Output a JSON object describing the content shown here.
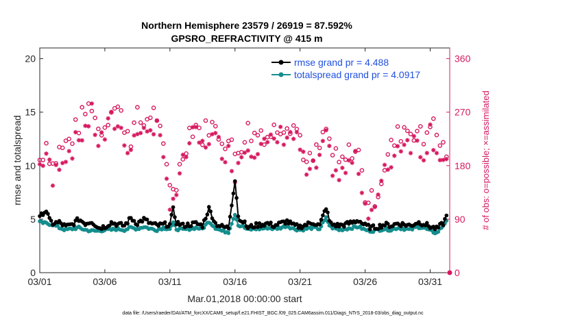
{
  "chart_data": {
    "type": "line",
    "title": "Northern Hemisphere 23579 / 26919 = 87.592%",
    "subtitle": "GPSRO_REFRACTIVITY @ 415 m",
    "xlabel": "Mar.01,2018 00:00:00 start",
    "ylabel": "rmse and totalspread",
    "ylabel_right": "# of obs: o=possible; ×=assimilated",
    "footer": "data file: /Users/raeder/DAI/ATM_forcXX/CAM6_setup/f.e21.FHIST_BGC.f09_025.CAM6assim.011/Diags_NTrS_2018-03/obs_diag_output.nc",
    "xlim": [
      0,
      31.5
    ],
    "ylim": [
      0,
      21
    ],
    "ylim_right": [
      0,
      378
    ],
    "xticks": [
      0,
      5,
      10,
      15,
      20,
      25,
      30
    ],
    "xtick_labels": [
      "03/01",
      "03/06",
      "03/11",
      "03/16",
      "03/21",
      "03/26",
      "03/31"
    ],
    "yticks": [
      0,
      5,
      10,
      15,
      20
    ],
    "yticks_right": [
      0,
      90,
      180,
      270,
      360
    ],
    "legend": [
      {
        "label": "rmse grand pr = 4.488",
        "color": "#000000"
      },
      {
        "label": "totalspread grand pr = 4.0917",
        "color": "#138d8d"
      }
    ],
    "legend_position": "top-right",
    "series": [
      {
        "name": "rmse",
        "color": "#000000",
        "anchors": [
          [
            0,
            5.1
          ],
          [
            0.25,
            5.6
          ],
          [
            0.5,
            5.8
          ],
          [
            0.75,
            4.9
          ],
          [
            1.0,
            4.6
          ],
          [
            1.5,
            4.7
          ],
          [
            2.0,
            4.3
          ],
          [
            2.5,
            4.5
          ],
          [
            3.0,
            5.0
          ],
          [
            3.5,
            4.6
          ],
          [
            4.0,
            4.8
          ],
          [
            4.5,
            4.2
          ],
          [
            5.0,
            4.3
          ],
          [
            5.5,
            4.7
          ],
          [
            6.0,
            4.5
          ],
          [
            6.5,
            4.4
          ],
          [
            7.0,
            5.1
          ],
          [
            7.5,
            4.6
          ],
          [
            8.0,
            5.0
          ],
          [
            8.5,
            4.6
          ],
          [
            9.0,
            4.4
          ],
          [
            9.5,
            4.5
          ],
          [
            10.0,
            4.5
          ],
          [
            10.25,
            5.9
          ],
          [
            10.5,
            4.7
          ],
          [
            11.0,
            4.4
          ],
          [
            11.5,
            4.5
          ],
          [
            12.0,
            4.6
          ],
          [
            12.5,
            4.4
          ],
          [
            13.0,
            6.0
          ],
          [
            13.5,
            4.6
          ],
          [
            14.0,
            4.3
          ],
          [
            14.5,
            4.2
          ],
          [
            15.0,
            8.7
          ],
          [
            15.3,
            4.7
          ],
          [
            15.5,
            5.0
          ],
          [
            16.0,
            4.2
          ],
          [
            16.5,
            4.4
          ],
          [
            17.0,
            4.5
          ],
          [
            17.5,
            4.6
          ],
          [
            18.0,
            4.4
          ],
          [
            18.5,
            4.6
          ],
          [
            19.0,
            4.8
          ],
          [
            19.5,
            4.4
          ],
          [
            20.0,
            4.3
          ],
          [
            20.5,
            4.5
          ],
          [
            21.0,
            4.7
          ],
          [
            21.5,
            4.4
          ],
          [
            22.0,
            6.1
          ],
          [
            22.3,
            4.6
          ],
          [
            22.5,
            4.5
          ],
          [
            23.0,
            4.4
          ],
          [
            23.5,
            4.5
          ],
          [
            24.0,
            4.7
          ],
          [
            24.5,
            4.9
          ],
          [
            25.0,
            4.4
          ],
          [
            25.5,
            4.2
          ],
          [
            26.0,
            4.3
          ],
          [
            26.5,
            4.5
          ],
          [
            27.0,
            4.4
          ],
          [
            27.5,
            4.6
          ],
          [
            28.0,
            4.5
          ],
          [
            28.5,
            4.4
          ],
          [
            29.0,
            4.7
          ],
          [
            29.5,
            4.6
          ],
          [
            30.0,
            4.3
          ],
          [
            30.5,
            4.1
          ],
          [
            31.0,
            4.6
          ],
          [
            31.3,
            5.4
          ]
        ]
      },
      {
        "name": "totalspread",
        "color": "#138d8d",
        "anchors": [
          [
            0,
            4.7
          ],
          [
            0.5,
            4.6
          ],
          [
            1.0,
            4.5
          ],
          [
            1.5,
            4.2
          ],
          [
            2.0,
            4.0
          ],
          [
            2.5,
            4.1
          ],
          [
            3.0,
            4.2
          ],
          [
            3.5,
            4.0
          ],
          [
            4.0,
            3.9
          ],
          [
            4.5,
            3.9
          ],
          [
            5.0,
            4.0
          ],
          [
            5.5,
            4.0
          ],
          [
            6.0,
            4.1
          ],
          [
            6.5,
            4.0
          ],
          [
            7.0,
            4.2
          ],
          [
            7.5,
            4.1
          ],
          [
            8.0,
            4.3
          ],
          [
            8.5,
            4.1
          ],
          [
            9.0,
            4.0
          ],
          [
            9.5,
            4.2
          ],
          [
            10.0,
            4.1
          ],
          [
            10.25,
            4.6
          ],
          [
            10.5,
            4.1
          ],
          [
            11.0,
            4.0
          ],
          [
            11.5,
            4.1
          ],
          [
            12.0,
            4.2
          ],
          [
            12.5,
            4.1
          ],
          [
            13.0,
            4.8
          ],
          [
            13.5,
            4.2
          ],
          [
            14.0,
            3.9
          ],
          [
            14.5,
            3.8
          ],
          [
            15.0,
            5.5
          ],
          [
            15.3,
            4.3
          ],
          [
            15.5,
            4.4
          ],
          [
            16.0,
            4.0
          ],
          [
            16.5,
            4.1
          ],
          [
            17.0,
            4.1
          ],
          [
            17.5,
            4.2
          ],
          [
            18.0,
            4.1
          ],
          [
            18.5,
            4.2
          ],
          [
            19.0,
            4.4
          ],
          [
            19.5,
            4.1
          ],
          [
            20.0,
            4.0
          ],
          [
            20.5,
            4.1
          ],
          [
            21.0,
            4.2
          ],
          [
            21.5,
            4.1
          ],
          [
            22.0,
            5.1
          ],
          [
            22.3,
            4.3
          ],
          [
            22.5,
            4.2
          ],
          [
            23.0,
            4.0
          ],
          [
            23.5,
            4.1
          ],
          [
            24.0,
            4.2
          ],
          [
            24.5,
            4.3
          ],
          [
            25.0,
            4.0
          ],
          [
            25.5,
            3.9
          ],
          [
            26.0,
            4.0
          ],
          [
            26.5,
            4.1
          ],
          [
            27.0,
            4.0
          ],
          [
            27.5,
            4.2
          ],
          [
            28.0,
            4.1
          ],
          [
            28.5,
            4.0
          ],
          [
            29.0,
            4.3
          ],
          [
            29.5,
            4.2
          ],
          [
            30.0,
            3.9
          ],
          [
            30.5,
            3.7
          ],
          [
            31.0,
            4.4
          ],
          [
            31.3,
            5.0
          ]
        ]
      },
      {
        "name": "obs possible",
        "color": "#d6185f",
        "axis": "right",
        "anchors": [
          [
            0,
            190
          ],
          [
            0.5,
            220
          ],
          [
            1.0,
            180
          ],
          [
            1.5,
            205
          ],
          [
            2.0,
            215
          ],
          [
            2.5,
            230
          ],
          [
            3.0,
            250
          ],
          [
            3.5,
            270
          ],
          [
            4.0,
            285
          ],
          [
            4.5,
            240
          ],
          [
            5.0,
            250
          ],
          [
            5.5,
            280
          ],
          [
            6.0,
            275
          ],
          [
            6.5,
            250
          ],
          [
            7.0,
            230
          ],
          [
            7.5,
            260
          ],
          [
            8.0,
            250
          ],
          [
            8.5,
            270
          ],
          [
            9.0,
            265
          ],
          [
            9.5,
            200
          ],
          [
            10.0,
            145
          ],
          [
            10.5,
            150
          ],
          [
            11.0,
            200
          ],
          [
            11.5,
            240
          ],
          [
            12.0,
            250
          ],
          [
            12.5,
            230
          ],
          [
            13.0,
            250
          ],
          [
            13.5,
            240
          ],
          [
            14.0,
            230
          ],
          [
            14.5,
            220
          ],
          [
            15.0,
            200
          ],
          [
            15.5,
            220
          ],
          [
            16.0,
            240
          ],
          [
            16.5,
            230
          ],
          [
            17.0,
            240
          ],
          [
            17.5,
            230
          ],
          [
            18.0,
            240
          ],
          [
            18.5,
            250
          ],
          [
            19.0,
            255
          ],
          [
            19.5,
            250
          ],
          [
            20.0,
            230
          ],
          [
            20.5,
            180
          ],
          [
            21.0,
            190
          ],
          [
            21.5,
            210
          ],
          [
            22.0,
            240
          ],
          [
            22.5,
            200
          ],
          [
            23.0,
            180
          ],
          [
            23.5,
            190
          ],
          [
            24.0,
            210
          ],
          [
            24.5,
            200
          ],
          [
            25.0,
            130
          ],
          [
            25.5,
            120
          ],
          [
            26.0,
            140
          ],
          [
            26.5,
            180
          ],
          [
            27.0,
            210
          ],
          [
            27.5,
            230
          ],
          [
            28.0,
            245
          ],
          [
            28.5,
            240
          ],
          [
            29.0,
            240
          ],
          [
            29.5,
            220
          ],
          [
            30.0,
            260
          ],
          [
            30.5,
            230
          ],
          [
            31.0,
            210
          ],
          [
            31.3,
            205
          ]
        ]
      },
      {
        "name": "obs assimilated",
        "color": "#d6185f",
        "axis": "right",
        "anchors": [
          [
            0,
            180
          ],
          [
            0.5,
            200
          ],
          [
            1.0,
            150
          ],
          [
            1.5,
            190
          ],
          [
            2.0,
            200
          ],
          [
            2.5,
            210
          ],
          [
            3.0,
            225
          ],
          [
            3.5,
            245
          ],
          [
            4.0,
            265
          ],
          [
            4.5,
            220
          ],
          [
            5.0,
            230
          ],
          [
            5.5,
            255
          ],
          [
            6.0,
            250
          ],
          [
            6.5,
            225
          ],
          [
            7.0,
            210
          ],
          [
            7.5,
            240
          ],
          [
            8.0,
            230
          ],
          [
            8.5,
            250
          ],
          [
            9.0,
            245
          ],
          [
            9.5,
            180
          ],
          [
            10.0,
            125
          ],
          [
            10.5,
            135
          ],
          [
            11.0,
            180
          ],
          [
            11.5,
            220
          ],
          [
            12.0,
            230
          ],
          [
            12.5,
            210
          ],
          [
            13.0,
            230
          ],
          [
            13.5,
            220
          ],
          [
            14.0,
            210
          ],
          [
            14.5,
            200
          ],
          [
            15.0,
            170
          ],
          [
            15.5,
            200
          ],
          [
            16.0,
            220
          ],
          [
            16.5,
            210
          ],
          [
            17.0,
            220
          ],
          [
            17.5,
            210
          ],
          [
            18.0,
            220
          ],
          [
            18.5,
            230
          ],
          [
            19.0,
            235
          ],
          [
            19.5,
            230
          ],
          [
            20.0,
            210
          ],
          [
            20.5,
            165
          ],
          [
            21.0,
            170
          ],
          [
            21.5,
            190
          ],
          [
            22.0,
            220
          ],
          [
            22.5,
            180
          ],
          [
            23.0,
            160
          ],
          [
            23.5,
            170
          ],
          [
            24.0,
            190
          ],
          [
            24.5,
            180
          ],
          [
            25.0,
            115
          ],
          [
            25.5,
            105
          ],
          [
            26.0,
            125
          ],
          [
            26.5,
            165
          ],
          [
            27.0,
            190
          ],
          [
            27.5,
            210
          ],
          [
            28.0,
            225
          ],
          [
            28.5,
            220
          ],
          [
            29.0,
            220
          ],
          [
            29.5,
            200
          ],
          [
            30.0,
            240
          ],
          [
            30.5,
            210
          ],
          [
            31.0,
            190
          ],
          [
            31.3,
            185
          ]
        ]
      }
    ]
  }
}
